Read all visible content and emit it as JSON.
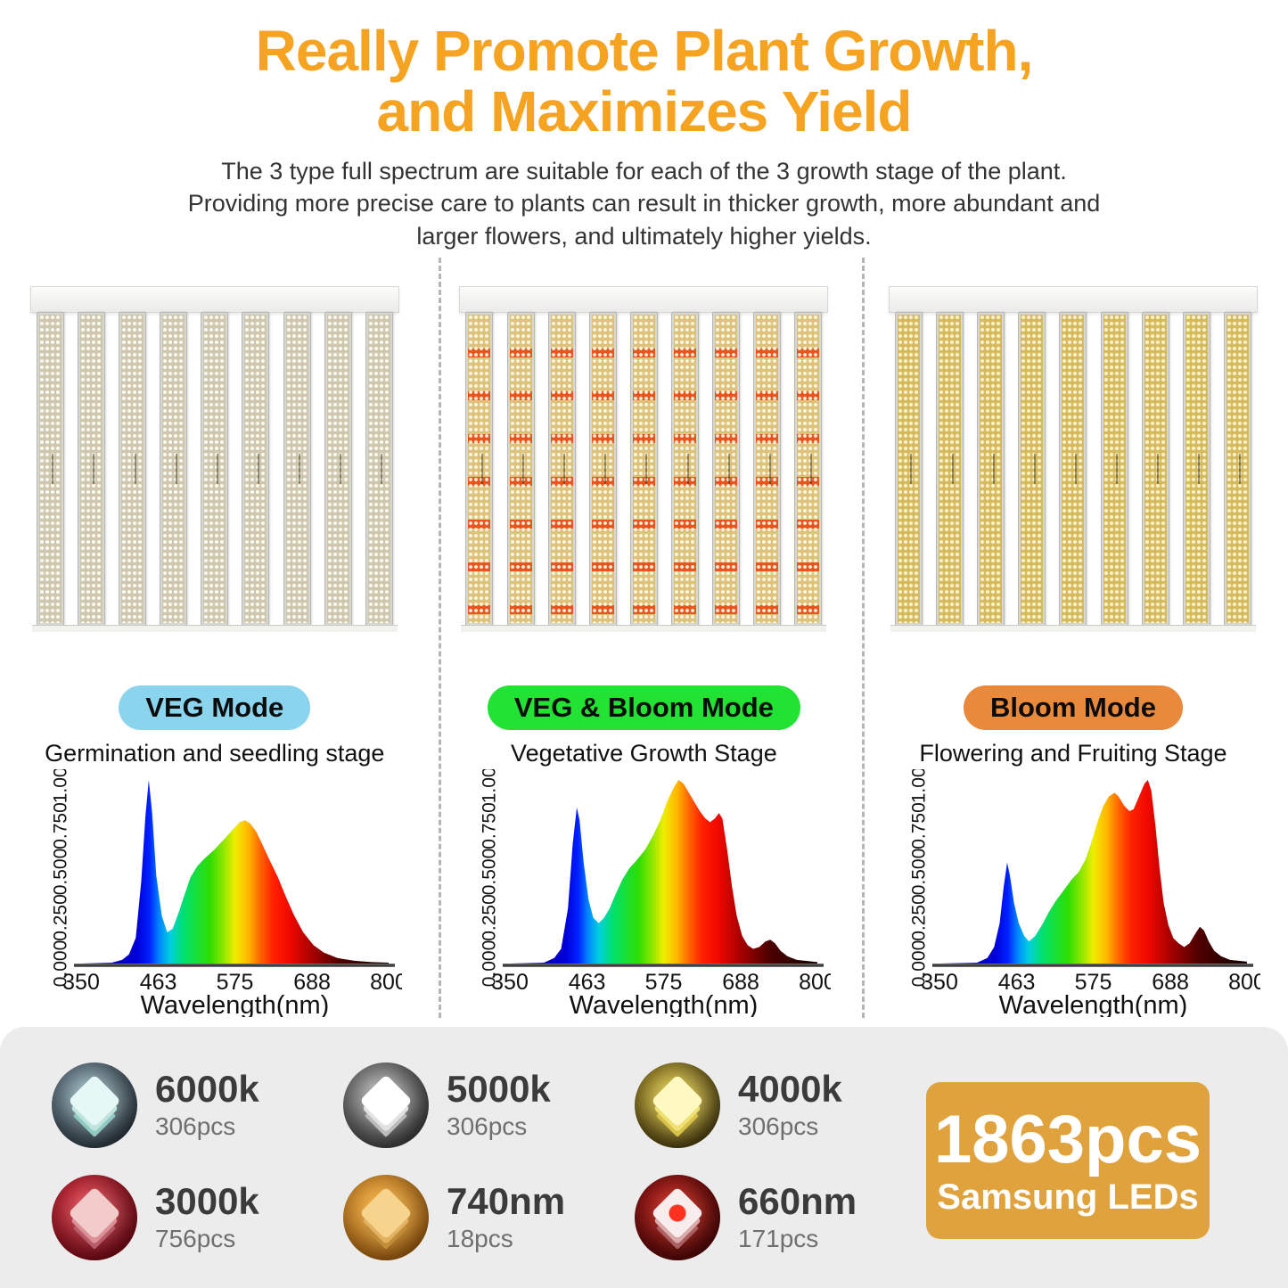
{
  "header": {
    "title_line1": "Really Promote Plant Growth,",
    "title_line2": "and Maximizes Yield",
    "title_color": "#F5A321",
    "subtitle_line1": "The 3 type full spectrum are suitable for each of the 3 growth stage of the plant.",
    "subtitle_line2": "Providing more precise care to plants can result in thicker growth, more abundant and",
    "subtitle_line3": "larger flowers, and ultimately higher yields."
  },
  "modes": [
    {
      "badge": "VEG Mode",
      "badge_color": "#8BD4EE",
      "stage": "Germination and seedling stage"
    },
    {
      "badge": "VEG & Bloom Mode",
      "badge_color": "#22E234",
      "stage": "Vegetative Growth Stage"
    },
    {
      "badge": "Bloom Mode",
      "badge_color": "#E8893B",
      "stage": "Flowering and Fruiting Stage"
    }
  ],
  "panel": {
    "bars_per_panel": 9,
    "red_rows_per_bar": 7
  },
  "chart_data": [
    {
      "type": "area",
      "title": "VEG Mode spectrum",
      "xlabel": "Wavelength(nm)",
      "x_ticks": [
        350,
        463,
        575,
        688,
        800
      ],
      "y_ticks": [
        "0.000",
        "0.250",
        "0.500",
        "0.750",
        "1.000"
      ],
      "xlim": [
        350,
        800
      ],
      "ylim": [
        0,
        1
      ],
      "legend": "none",
      "grid": false,
      "series": [
        {
          "name": "VEG Mode relative intensity",
          "points": [
            [
              350,
              0
            ],
            [
              395,
              0.005
            ],
            [
              410,
              0.02
            ],
            [
              420,
              0.05
            ],
            [
              430,
              0.14
            ],
            [
              438,
              0.45
            ],
            [
              444,
              0.8
            ],
            [
              449,
              1.0
            ],
            [
              454,
              0.82
            ],
            [
              460,
              0.48
            ],
            [
              468,
              0.26
            ],
            [
              476,
              0.17
            ],
            [
              484,
              0.19
            ],
            [
              492,
              0.27
            ],
            [
              500,
              0.36
            ],
            [
              510,
              0.47
            ],
            [
              520,
              0.53
            ],
            [
              530,
              0.57
            ],
            [
              545,
              0.62
            ],
            [
              560,
              0.68
            ],
            [
              572,
              0.73
            ],
            [
              582,
              0.77
            ],
            [
              590,
              0.78
            ],
            [
              598,
              0.76
            ],
            [
              606,
              0.72
            ],
            [
              615,
              0.65
            ],
            [
              625,
              0.57
            ],
            [
              638,
              0.47
            ],
            [
              650,
              0.36
            ],
            [
              662,
              0.26
            ],
            [
              675,
              0.17
            ],
            [
              690,
              0.1
            ],
            [
              705,
              0.06
            ],
            [
              725,
              0.03
            ],
            [
              750,
              0.015
            ],
            [
              775,
              0.008
            ],
            [
              800,
              0.005
            ]
          ]
        }
      ]
    },
    {
      "type": "area",
      "title": "VEG & Bloom Mode spectrum",
      "xlabel": "Wavelength(nm)",
      "x_ticks": [
        350,
        463,
        575,
        688,
        800
      ],
      "y_ticks": [
        "0.000",
        "0.250",
        "0.500",
        "0.750",
        "1.000"
      ],
      "xlim": [
        350,
        800
      ],
      "ylim": [
        0,
        1
      ],
      "legend": "none",
      "grid": false,
      "series": [
        {
          "name": "VEG & Bloom Mode relative intensity",
          "points": [
            [
              350,
              0
            ],
            [
              400,
              0.005
            ],
            [
              415,
              0.03
            ],
            [
              425,
              0.08
            ],
            [
              435,
              0.3
            ],
            [
              442,
              0.65
            ],
            [
              448,
              0.85
            ],
            [
              452,
              0.78
            ],
            [
              458,
              0.55
            ],
            [
              465,
              0.35
            ],
            [
              472,
              0.25
            ],
            [
              480,
              0.22
            ],
            [
              488,
              0.25
            ],
            [
              496,
              0.3
            ],
            [
              505,
              0.38
            ],
            [
              515,
              0.46
            ],
            [
              525,
              0.52
            ],
            [
              535,
              0.56
            ],
            [
              548,
              0.62
            ],
            [
              560,
              0.7
            ],
            [
              570,
              0.78
            ],
            [
              580,
              0.88
            ],
            [
              590,
              0.96
            ],
            [
              597,
              1.0
            ],
            [
              604,
              0.98
            ],
            [
              612,
              0.93
            ],
            [
              620,
              0.88
            ],
            [
              628,
              0.83
            ],
            [
              636,
              0.79
            ],
            [
              643,
              0.77
            ],
            [
              650,
              0.79
            ],
            [
              656,
              0.82
            ],
            [
              661,
              0.79
            ],
            [
              668,
              0.62
            ],
            [
              675,
              0.42
            ],
            [
              682,
              0.26
            ],
            [
              690,
              0.15
            ],
            [
              698,
              0.1
            ],
            [
              706,
              0.08
            ],
            [
              715,
              0.09
            ],
            [
              724,
              0.12
            ],
            [
              731,
              0.13
            ],
            [
              738,
              0.11
            ],
            [
              746,
              0.07
            ],
            [
              756,
              0.04
            ],
            [
              770,
              0.02
            ],
            [
              800,
              0.008
            ]
          ]
        }
      ]
    },
    {
      "type": "area",
      "title": "Bloom Mode spectrum",
      "xlabel": "Wavelength(nm)",
      "x_ticks": [
        350,
        463,
        575,
        688,
        800
      ],
      "y_ticks": [
        "0.000",
        "0.250",
        "0.500",
        "0.750",
        "1.000"
      ],
      "xlim": [
        350,
        800
      ],
      "ylim": [
        0,
        1
      ],
      "legend": "none",
      "grid": false,
      "series": [
        {
          "name": "Bloom Mode relative intensity",
          "points": [
            [
              350,
              0
            ],
            [
              405,
              0.005
            ],
            [
              420,
              0.03
            ],
            [
              430,
              0.09
            ],
            [
              438,
              0.22
            ],
            [
              444,
              0.42
            ],
            [
              449,
              0.55
            ],
            [
              453,
              0.48
            ],
            [
              459,
              0.33
            ],
            [
              466,
              0.22
            ],
            [
              474,
              0.15
            ],
            [
              481,
              0.12
            ],
            [
              490,
              0.15
            ],
            [
              500,
              0.21
            ],
            [
              510,
              0.28
            ],
            [
              520,
              0.34
            ],
            [
              532,
              0.4
            ],
            [
              544,
              0.46
            ],
            [
              554,
              0.5
            ],
            [
              564,
              0.57
            ],
            [
              574,
              0.68
            ],
            [
              582,
              0.78
            ],
            [
              590,
              0.86
            ],
            [
              598,
              0.91
            ],
            [
              606,
              0.93
            ],
            [
              612,
              0.91
            ],
            [
              620,
              0.86
            ],
            [
              628,
              0.83
            ],
            [
              634,
              0.84
            ],
            [
              642,
              0.91
            ],
            [
              650,
              0.98
            ],
            [
              655,
              1.0
            ],
            [
              660,
              0.94
            ],
            [
              666,
              0.75
            ],
            [
              672,
              0.52
            ],
            [
              678,
              0.33
            ],
            [
              685,
              0.21
            ],
            [
              692,
              0.14
            ],
            [
              700,
              0.11
            ],
            [
              708,
              0.09
            ],
            [
              716,
              0.11
            ],
            [
              724,
              0.16
            ],
            [
              731,
              0.2
            ],
            [
              737,
              0.18
            ],
            [
              744,
              0.12
            ],
            [
              752,
              0.07
            ],
            [
              762,
              0.04
            ],
            [
              775,
              0.02
            ],
            [
              800,
              0.01
            ]
          ]
        }
      ]
    }
  ],
  "leds": {
    "items": [
      {
        "value": "6000k",
        "count": "306pcs",
        "icon": "cool-white-led-chip"
      },
      {
        "value": "5000k",
        "count": "306pcs",
        "icon": "white-led-chip"
      },
      {
        "value": "4000k",
        "count": "306pcs",
        "icon": "yellow-led-chip"
      },
      {
        "value": "3000k",
        "count": "756pcs",
        "icon": "warm-red-led-chip"
      },
      {
        "value": "740nm",
        "count": "18pcs",
        "icon": "amber-ir-led-chip"
      },
      {
        "value": "660nm",
        "count": "171pcs",
        "icon": "deep-red-led-chip"
      }
    ],
    "total_value": "1863pcs",
    "total_label": "Samsung LEDs",
    "total_badge_color": "#E0A23C"
  }
}
